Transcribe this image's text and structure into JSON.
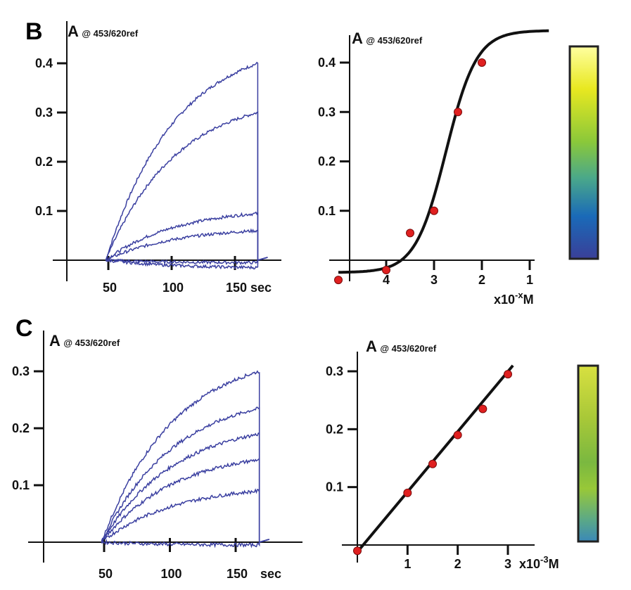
{
  "panels": {
    "B": {
      "letter": "B"
    },
    "C": {
      "letter": "C"
    }
  },
  "ylabel_main": "A",
  "ylabel_sub": "@ 453/620ref",
  "x_unit_time": "sec",
  "x_unit_B": "x10",
  "x_unit_B_sup": "-x",
  "x_unit_B_tail": "M",
  "x_unit_C": "x10",
  "x_unit_C_sup": "-3",
  "x_unit_C_tail": "M",
  "colorbar_B": [
    "#ffffa0",
    "#e8e820",
    "#8ac83a",
    "#4aa88a",
    "#1a6ab8",
    "#3a3f98"
  ],
  "colorbar_C": [
    "#d8e040",
    "#a8c838",
    "#7ab840",
    "#98c838",
    "#5aa888",
    "#3a88b8"
  ],
  "chart_data": [
    {
      "panel": "B-left",
      "type": "line",
      "xlabel": "sec",
      "ylabel": "A@ 453/620ref",
      "xticks": [
        50,
        100,
        150
      ],
      "yticks": [
        0.1,
        0.2,
        0.3,
        0.4
      ],
      "xlim": [
        0,
        190
      ],
      "ylim": [
        -0.02,
        0.45
      ],
      "series_note_values": "final plateau absorbance of each kinetic trace (rise from t=48 s to t=168 s)",
      "series": [
        {
          "values": [
            0.4
          ]
        },
        {
          "values": [
            0.3
          ]
        },
        {
          "values": [
            0.095
          ]
        },
        {
          "values": [
            0.06
          ]
        },
        {
          "values": [
            -0.005
          ]
        },
        {
          "values": [
            -0.015
          ]
        }
      ]
    },
    {
      "panel": "B-right",
      "type": "scatter",
      "xlabel": "x10-xM",
      "ylabel": "A@ 453/620ref",
      "xticks": [
        4,
        3,
        2,
        1
      ],
      "yticks": [
        0.1,
        0.2,
        0.3,
        0.4
      ],
      "xlim": [
        5,
        0.5
      ],
      "ylim": [
        -0.04,
        0.46
      ],
      "x": [
        5,
        4,
        3.5,
        3,
        2.5,
        2
      ],
      "y": [
        -0.04,
        -0.02,
        0.055,
        0.1,
        0.3,
        0.4
      ],
      "fit": "sigmoid"
    },
    {
      "panel": "C-left",
      "type": "line",
      "xlabel": "sec",
      "ylabel": "A@ 453/620ref",
      "xticks": [
        50,
        100,
        150
      ],
      "yticks": [
        0.1,
        0.2,
        0.3
      ],
      "xlim": [
        0,
        190
      ],
      "ylim": [
        -0.02,
        0.34
      ],
      "series": [
        {
          "values": [
            0.3
          ]
        },
        {
          "values": [
            0.235
          ]
        },
        {
          "values": [
            0.19
          ]
        },
        {
          "values": [
            0.145
          ]
        },
        {
          "values": [
            0.09
          ]
        },
        {
          "values": [
            -0.005
          ]
        }
      ]
    },
    {
      "panel": "C-right",
      "type": "scatter",
      "xlabel": "x10-3 M",
      "ylabel": "A@ 453/620ref",
      "xticks": [
        1,
        2,
        3
      ],
      "yticks": [
        0.1,
        0.2,
        0.3
      ],
      "xlim": [
        0,
        3.3
      ],
      "ylim": [
        -0.02,
        0.34
      ],
      "x": [
        0,
        1,
        1.5,
        2,
        2.5,
        3
      ],
      "y": [
        -0.01,
        0.09,
        0.14,
        0.19,
        0.235,
        0.295
      ],
      "fit": "linear"
    }
  ]
}
